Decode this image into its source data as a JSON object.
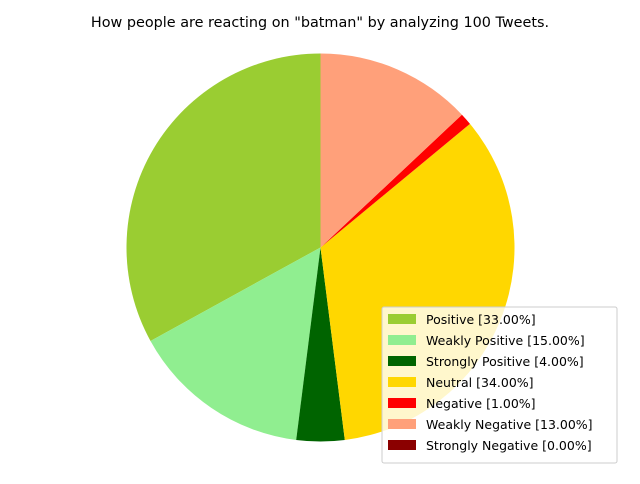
{
  "chart_data": {
    "type": "pie",
    "title": "How people are reacting on \"batman\" by analyzing 100 Tweets.",
    "slices": [
      {
        "label": "Positive [33.00%]",
        "value": 33.0,
        "color": "#9ACD32"
      },
      {
        "label": "Weakly Positive [15.00%]",
        "value": 15.0,
        "color": "#90EE90"
      },
      {
        "label": "Strongly Positive [4.00%]",
        "value": 4.0,
        "color": "#006400"
      },
      {
        "label": "Neutral [34.00%]",
        "value": 34.0,
        "color": "#FFD700"
      },
      {
        "label": "Negative [1.00%]",
        "value": 1.0,
        "color": "#FF0000"
      },
      {
        "label": "Weakly Negative [13.00%]",
        "value": 13.0,
        "color": "#FFA07A"
      },
      {
        "label": "Strongly Negative [0.00%]",
        "value": 0.0,
        "color": "#8B0000"
      }
    ],
    "start_angle_deg": 90,
    "direction": "counterclockwise",
    "legend_placement": "lower-right"
  }
}
